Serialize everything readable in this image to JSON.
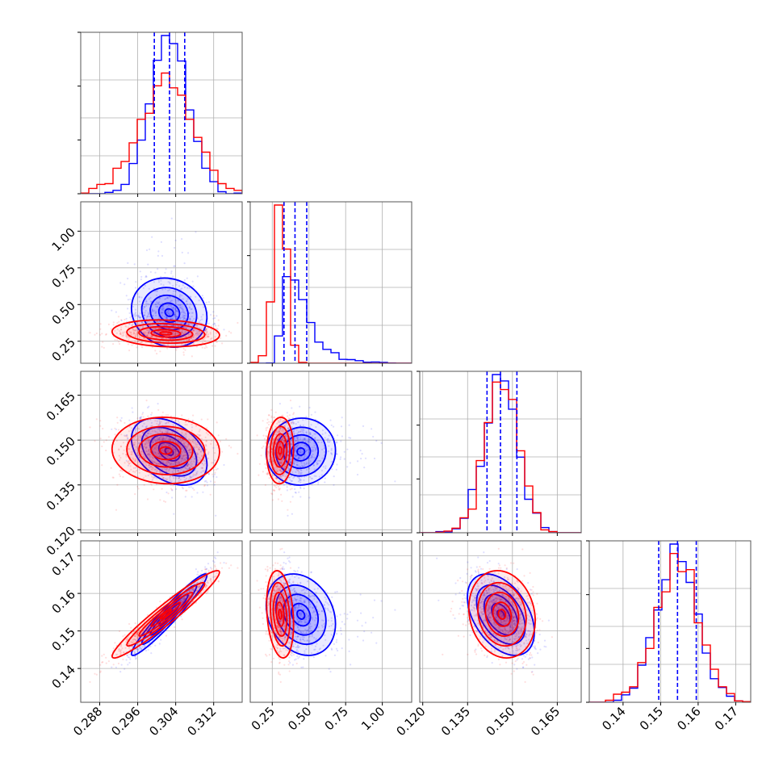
{
  "chart_data": {
    "type": "corner",
    "grid": true,
    "n_params": 4,
    "colors": {
      "blue": "#0000ff",
      "red": "#ff0000"
    },
    "series": [
      {
        "color": "#0000ff"
      },
      {
        "color": "#ff0000"
      }
    ],
    "axes_ranges": [
      [
        0.284,
        0.318
      ],
      [
        0.1,
        1.2
      ],
      [
        0.119,
        0.173
      ],
      [
        0.131,
        0.174
      ]
    ],
    "tick_labels": [
      {
        "values": [
          0.288,
          0.296,
          0.304,
          0.312
        ],
        "labels": [
          "0.288",
          "0.296",
          "0.304",
          "0.312"
        ]
      },
      {
        "values": [
          0.25,
          0.5,
          0.75,
          1.0
        ],
        "labels": [
          "0.25",
          "0.50",
          "0.75",
          "1.00"
        ]
      },
      {
        "values": [
          0.12,
          0.135,
          0.15,
          0.165
        ],
        "labels": [
          "0.120",
          "0.135",
          "0.150",
          "0.165"
        ]
      },
      {
        "values": [
          0.14,
          0.15,
          0.16,
          0.17
        ],
        "labels": [
          "0.14",
          "0.15",
          "0.16",
          "0.17"
        ]
      }
    ],
    "quantile_lines": [
      [
        0.2995,
        0.3027,
        0.3059
      ],
      [
        0.33,
        0.405,
        0.485
      ],
      [
        0.1415,
        0.146,
        0.1515
      ],
      [
        0.1495,
        0.1545,
        0.1595
      ]
    ],
    "stats": {
      "blue": {
        "mean": [
          0.3028,
          0.42,
          0.146,
          0.1545
        ],
        "std": [
          0.0041,
          0.1,
          0.0055,
          0.0056
        ],
        "skew": [
          0,
          1,
          0,
          0
        ]
      },
      "red": {
        "mean": [
          0.302,
          0.305,
          0.1465,
          0.1545
        ],
        "std": [
          0.0055,
          0.045,
          0.0055,
          0.0056
        ],
        "skew": [
          0,
          0,
          0,
          0
        ]
      }
    },
    "correlations": {
      "blue": [
        [
          1,
          -0.2,
          -0.4,
          0.96
        ],
        [
          -0.2,
          1,
          0.05,
          -0.3
        ],
        [
          -0.4,
          0.05,
          1,
          -0.45
        ],
        [
          0.96,
          -0.3,
          -0.45,
          1
        ]
      ],
      "red": [
        [
          1,
          -0.1,
          0,
          0.96
        ],
        [
          -0.1,
          1,
          0,
          -0.2
        ],
        [
          0,
          0,
          1,
          -0.1
        ],
        [
          0.96,
          -0.2,
          -0.1,
          1
        ]
      ]
    }
  }
}
